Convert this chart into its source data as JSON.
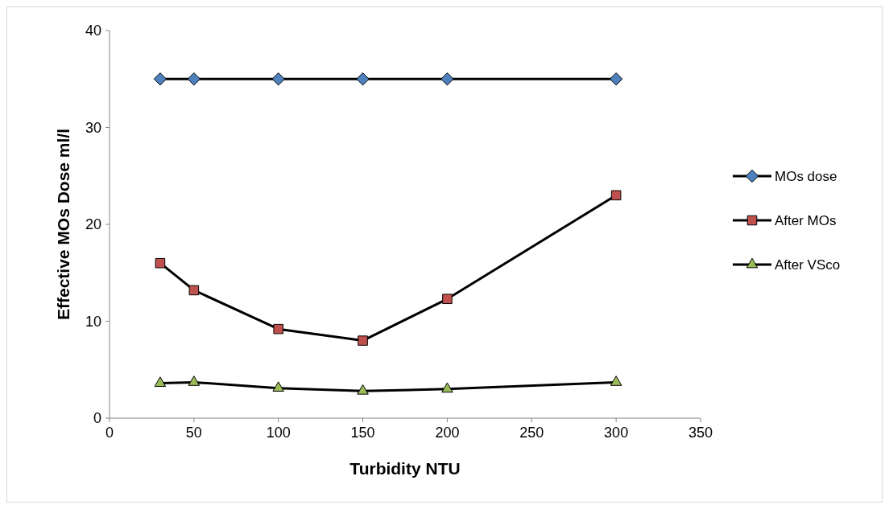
{
  "chart_data": {
    "type": "line",
    "xlabel": "Turbidity NTU",
    "ylabel": "Effective MOs Dose ml/l",
    "x": [
      30,
      50,
      100,
      150,
      200,
      300
    ],
    "xlim": [
      0,
      350
    ],
    "xticks": [
      0,
      50,
      100,
      150,
      200,
      250,
      300,
      350
    ],
    "ylim": [
      0,
      40
    ],
    "yticks": [
      0,
      10,
      20,
      30,
      40
    ],
    "grid": false,
    "legend": "right",
    "line_style": "solid",
    "series": [
      {
        "name": "MOs dose",
        "color": "#4f81bd",
        "marker": "diamond",
        "values": [
          35,
          35,
          35,
          35,
          35,
          35
        ]
      },
      {
        "name": "After MOs",
        "color": "#c0504d",
        "marker": "square",
        "values": [
          16,
          13.2,
          9.2,
          8,
          12.3,
          23
        ]
      },
      {
        "name": "After VSco",
        "color": "#9bbb59",
        "marker": "triangle",
        "values": [
          3.6,
          3.7,
          3.1,
          2.8,
          3,
          3.7
        ]
      }
    ]
  }
}
